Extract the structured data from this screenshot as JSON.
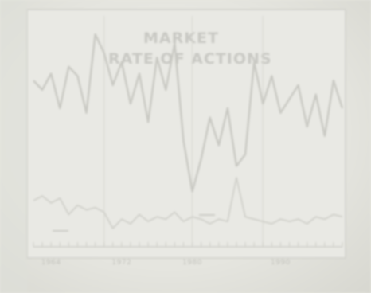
{
  "chart_data": {
    "type": "line",
    "title": "MARKET\nRATE OF ACTIONS",
    "series": [
      {
        "name": "",
        "x": [
          1962,
          1963,
          1964,
          1965,
          1966,
          1967,
          1968,
          1969,
          1970,
          1971,
          1972,
          1973,
          1974,
          1975,
          1976,
          1977,
          1978,
          1979,
          1980,
          1981,
          1982,
          1983,
          1984,
          1985,
          1986,
          1987,
          1988,
          1989,
          1990,
          1991,
          1992,
          1993,
          1994,
          1995,
          1996,
          1997
        ],
        "values": [
          72,
          68,
          75,
          60,
          78,
          74,
          58,
          92,
          84,
          70,
          80,
          62,
          75,
          54,
          82,
          68,
          88,
          46,
          24,
          38,
          56,
          44,
          60,
          35,
          40,
          80,
          62,
          74,
          58,
          64,
          70,
          52,
          66,
          48,
          72,
          60
        ]
      },
      {
        "name": "",
        "x": [
          1962,
          1963,
          1964,
          1965,
          1966,
          1967,
          1968,
          1969,
          1970,
          1971,
          1972,
          1973,
          1974,
          1975,
          1976,
          1977,
          1978,
          1979,
          1980,
          1981,
          1982,
          1983,
          1984,
          1985,
          1986,
          1987,
          1988,
          1989,
          1990,
          1991,
          1992,
          1993,
          1994,
          1995,
          1996,
          1997
        ],
        "values": [
          20,
          22,
          19,
          21,
          14,
          18,
          16,
          17,
          15,
          8,
          12,
          10,
          14,
          11,
          13,
          12,
          15,
          11,
          13,
          12,
          10,
          12,
          11,
          30,
          13,
          12,
          11,
          10,
          12,
          11,
          12,
          10,
          13,
          12,
          14,
          13
        ]
      }
    ],
    "x_ticks": [
      "1964",
      "1972",
      "1980",
      "1990"
    ],
    "xlim": [
      1962,
      1997
    ],
    "ylim": [
      0,
      100
    ],
    "legend": [
      "",
      ""
    ],
    "grid": true
  }
}
